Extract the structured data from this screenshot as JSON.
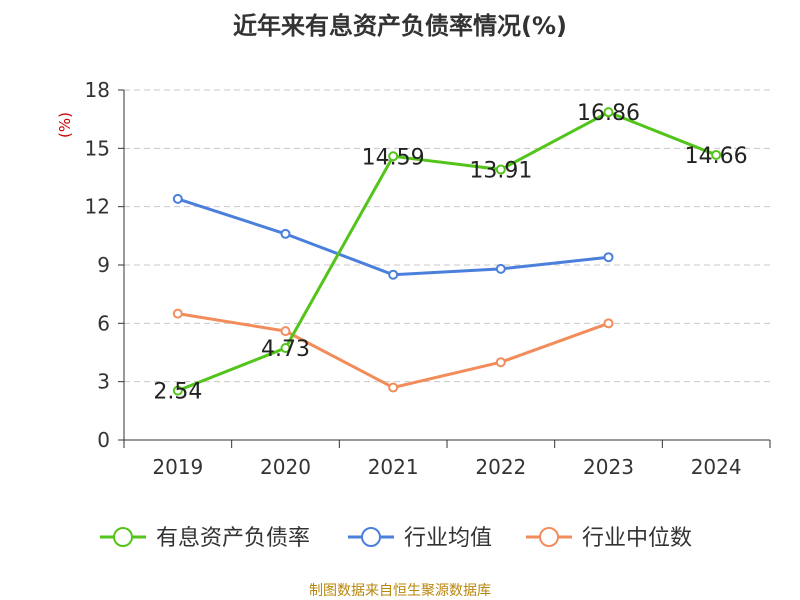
{
  "chart_data": {
    "type": "line",
    "title": "近年来有息资产负债率情况(%)",
    "ylabel": "(%)",
    "xlabel": "",
    "categories": [
      "2019",
      "2020",
      "2021",
      "2022",
      "2023",
      "2024"
    ],
    "ylim": [
      0,
      18
    ],
    "yticks": [
      0,
      3,
      6,
      9,
      12,
      15,
      18
    ],
    "grid": "horizontal-dashed",
    "legend_position": "bottom",
    "series": [
      {
        "name": "有息资产负债率",
        "color": "#52c41a",
        "values": [
          2.54,
          4.73,
          14.59,
          13.91,
          16.86,
          14.66
        ],
        "labels": [
          "2.54",
          "4.73",
          "14.59",
          "13.91",
          "16.86",
          "14.66"
        ]
      },
      {
        "name": "行业均值",
        "color": "#4a7fdb",
        "values": [
          12.4,
          10.6,
          8.5,
          8.8,
          9.4,
          null
        ]
      },
      {
        "name": "行业中位数",
        "color": "#f28c5a",
        "values": [
          6.5,
          5.6,
          2.7,
          4.0,
          6.0,
          null
        ]
      }
    ]
  },
  "source": "制图数据来自恒生聚源数据库"
}
